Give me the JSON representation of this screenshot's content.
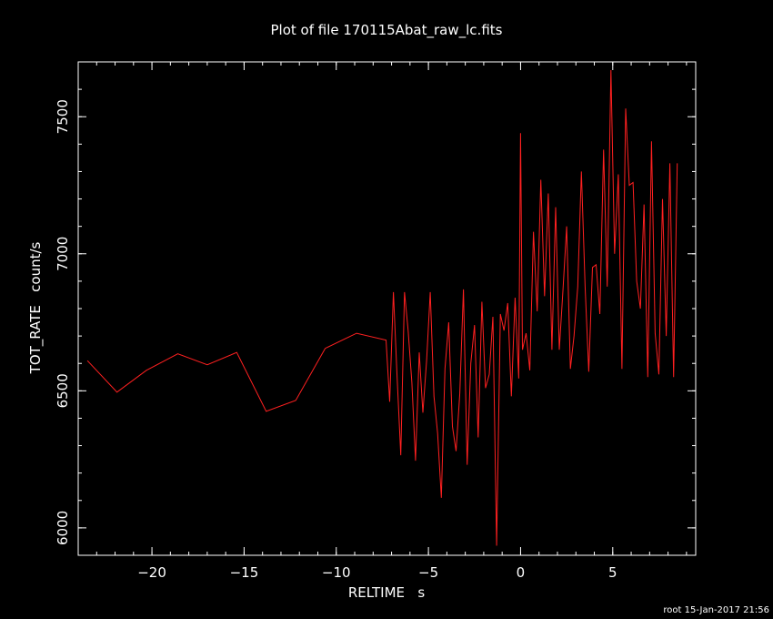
{
  "footer": "root 15-Jan-2017 21:56",
  "chart_data": {
    "type": "line",
    "title": "Plot of file 170115Abat_raw_lc.fits",
    "xlabel": "RELTIME   s",
    "ylabel": "TOT_RATE   count/s",
    "xlim": [
      -24,
      9.5
    ],
    "ylim": [
      5900,
      7700
    ],
    "x_major_ticks": [
      -20,
      -15,
      -10,
      -5,
      0,
      5
    ],
    "x_tick_labels": [
      "−20",
      "−15",
      "−10",
      "−5",
      "0",
      "5"
    ],
    "x_minor_step": 1,
    "y_major_ticks": [
      6000,
      6500,
      7000,
      7500
    ],
    "y_tick_labels": [
      "6000",
      "6500",
      "7000",
      "7500"
    ],
    "y_minor_step": 100,
    "grid": false,
    "line_color": "#ff2020",
    "axis_color": "#ffffff",
    "background": "#000000",
    "series": [
      {
        "x": [
          -23.5,
          -21.9,
          -20.3,
          -18.6,
          -17.0,
          -15.4,
          -13.8,
          -12.2,
          -10.6,
          -8.9,
          -7.3,
          -7.1,
          -6.9,
          -6.7,
          -6.5,
          -6.3,
          -6.1,
          -5.9,
          -5.7,
          -5.5,
          -5.3,
          -5.1,
          -4.9,
          -4.7,
          -4.5,
          -4.3,
          -4.1,
          -3.9,
          -3.7,
          -3.5,
          -3.3,
          -3.1,
          -2.9,
          -2.7,
          -2.5,
          -2.3,
          -2.1,
          -1.9,
          -1.7,
          -1.5,
          -1.3,
          -1.1,
          -0.9,
          -0.7,
          -0.5,
          -0.3,
          -0.1,
          0.0,
          0.1,
          0.3,
          0.5,
          0.7,
          0.9,
          1.1,
          1.3,
          1.5,
          1.7,
          1.9,
          2.1,
          2.3,
          2.5,
          2.7,
          2.9,
          3.1,
          3.3,
          3.5,
          3.7,
          3.9,
          4.1,
          4.3,
          4.5,
          4.7,
          4.9,
          5.1,
          5.3,
          5.5,
          5.7,
          5.9,
          6.1,
          6.3,
          6.5,
          6.7,
          6.9,
          7.1,
          7.3,
          7.5,
          7.7,
          7.9,
          8.1,
          8.3,
          8.5
        ],
        "y": [
          6610,
          6495,
          6575,
          6635,
          6595,
          6640,
          6425,
          6465,
          6655,
          6710,
          6685,
          6460,
          6860,
          6555,
          6265,
          6860,
          6720,
          6530,
          6245,
          6640,
          6420,
          6610,
          6860,
          6480,
          6345,
          6110,
          6580,
          6750,
          6370,
          6280,
          6490,
          6870,
          6230,
          6600,
          6740,
          6330,
          6825,
          6510,
          6560,
          6770,
          5935,
          6780,
          6720,
          6820,
          6480,
          6840,
          6545,
          7440,
          6650,
          6710,
          6575,
          7080,
          6790,
          7270,
          6845,
          7220,
          6650,
          7170,
          6650,
          6870,
          7100,
          6580,
          6700,
          6880,
          7300,
          6880,
          6570,
          6950,
          6960,
          6780,
          7380,
          6880,
          7670,
          7000,
          7290,
          6580,
          7530,
          7250,
          7260,
          6900,
          6800,
          7180,
          6550,
          7410,
          6710,
          6560,
          7200,
          6700,
          7330,
          6550,
          7330
        ]
      }
    ]
  }
}
